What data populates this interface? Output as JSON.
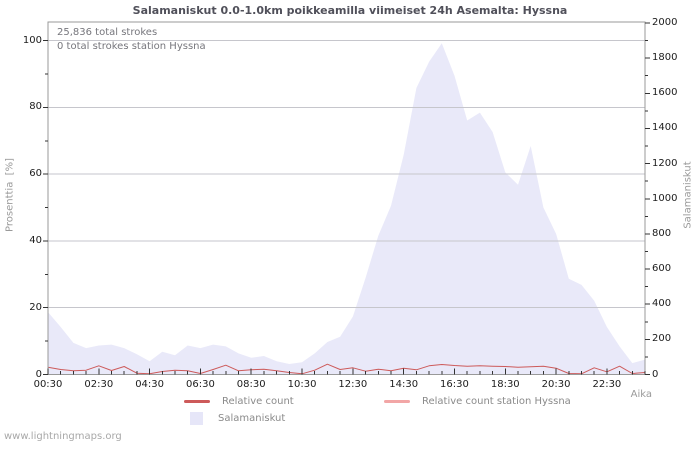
{
  "title": "Salamaniskut 0.0-1.0km poikkeamilla viimeiset 24h Asemalta: Hyssna",
  "annotations": {
    "total_strokes": "25,836 total strokes",
    "station_strokes": "0 total strokes station Hyssna"
  },
  "axes": {
    "left": {
      "label": "Prosenttia  [%]",
      "range": [
        0,
        100
      ],
      "major_ticks": [
        0,
        20,
        40,
        60,
        80,
        100
      ],
      "minor_step": 10
    },
    "right": {
      "label": "Salamaniskut",
      "range": [
        0,
        2000
      ],
      "major_ticks": [
        0,
        200,
        400,
        600,
        800,
        1000,
        1200,
        1400,
        1600,
        1800,
        2000
      ],
      "minor_step": 100
    },
    "x": {
      "label": "Aika",
      "tick_labels": [
        "00:30",
        "02:30",
        "04:30",
        "06:30",
        "08:30",
        "10:30",
        "12:30",
        "14:30",
        "16:30",
        "18:30",
        "20:30",
        "22:30"
      ],
      "minor_step_hours": 0.5
    }
  },
  "legend": [
    {
      "label": "Relative count",
      "swatch": "line",
      "color": "#cd5a5a"
    },
    {
      "label": "Relative count station Hyssna",
      "swatch": "line",
      "color": "#f2a6a6"
    },
    {
      "label": "Salamaniskut",
      "swatch": "box",
      "color": "#e6e6f8"
    }
  ],
  "watermark": "www.lightningmaps.org",
  "colors": {
    "area_fill": "#e9e9f9",
    "relative_count_line": "#cd5a5a",
    "station_line": "#f2a6a6",
    "grid": "#c6c6cc",
    "frame": "#999999",
    "tick": "#333333"
  },
  "chart_data": {
    "type": "area",
    "title": "Salamaniskut 0.0-1.0km poikkeamilla viimeiset 24h Asemalta: Hyssna",
    "xlabel": "Aika",
    "ylabel_left": "Prosenttia  [%]",
    "ylabel_right": "Salamaniskut",
    "ylim_left": [
      0,
      100
    ],
    "ylim_right": [
      0,
      2000
    ],
    "grid": "horizontal-only",
    "legend_position": "bottom",
    "x_start_hour": 0.5,
    "x_step_hours": 0.5,
    "series": [
      {
        "name": "Salamaniskut",
        "type": "area",
        "axis": "right",
        "values": [
          355,
          270,
          180,
          150,
          165,
          170,
          150,
          115,
          75,
          130,
          110,
          165,
          150,
          170,
          160,
          120,
          95,
          105,
          75,
          60,
          70,
          120,
          185,
          215,
          330,
          550,
          790,
          960,
          1250,
          1630,
          1780,
          1885,
          1700,
          1445,
          1490,
          1380,
          1150,
          1080,
          1300,
          950,
          800,
          545,
          510,
          420,
          270,
          160,
          65,
          85
        ]
      },
      {
        "name": "Relative count",
        "type": "line",
        "axis": "left",
        "values": [
          2.2,
          1.5,
          1.1,
          1.3,
          2.6,
          1.2,
          2.4,
          0.4,
          0.2,
          0.9,
          1.3,
          1.1,
          0.3,
          1.5,
          2.8,
          1.1,
          1.4,
          1.6,
          1.1,
          0.6,
          0.2,
          1.3,
          3.1,
          1.5,
          2.0,
          1.0,
          1.6,
          1.1,
          1.9,
          1.4,
          2.6,
          3.0,
          2.7,
          2.5,
          2.6,
          2.5,
          2.4,
          2.2,
          2.3,
          2.5,
          1.9,
          0.3,
          0.2,
          2.0,
          0.8,
          2.5,
          0.3,
          0.6
        ]
      },
      {
        "name": "Relative count station Hyssna",
        "type": "line",
        "axis": "left",
        "values": [
          0,
          0,
          0,
          0,
          0,
          0,
          0,
          0,
          0,
          0,
          0,
          0,
          0,
          0,
          0,
          0,
          0,
          0,
          0,
          0,
          0,
          0,
          0,
          0,
          0,
          0,
          0,
          0,
          0,
          0,
          0,
          0,
          0,
          0,
          0,
          0,
          0,
          0,
          0,
          0,
          0,
          0,
          0,
          0,
          0,
          0,
          0,
          0
        ]
      }
    ]
  }
}
